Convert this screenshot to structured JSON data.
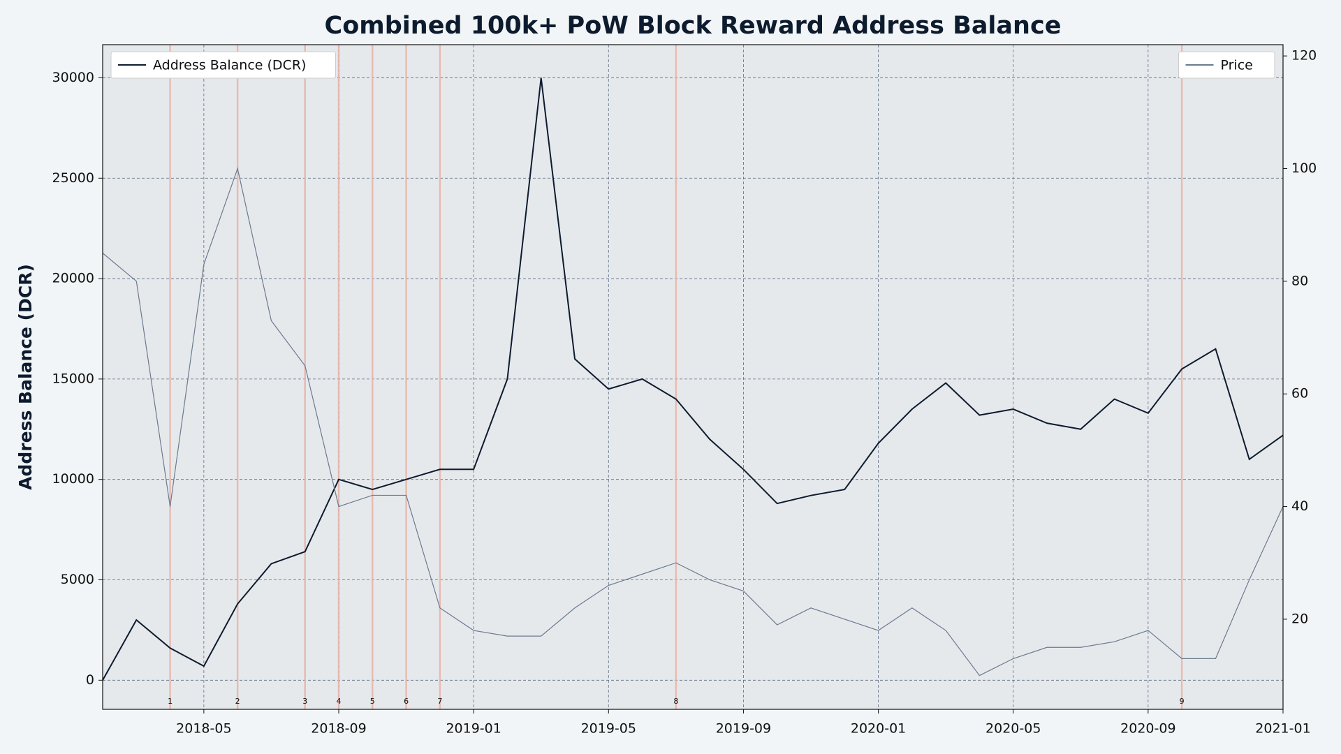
{
  "chart_data": {
    "type": "line",
    "title": "Combined 100k+ PoW Block Reward Address Balance",
    "y_label": "Address Balance (DCR)",
    "x": [
      "2018-02",
      "2018-03",
      "2018-04",
      "2018-05",
      "2018-06",
      "2018-07",
      "2018-08",
      "2018-09",
      "2018-10",
      "2018-11",
      "2018-12",
      "2019-01",
      "2019-02",
      "2019-03",
      "2019-04",
      "2019-05",
      "2019-06",
      "2019-07",
      "2019-08",
      "2019-09",
      "2019-10",
      "2019-11",
      "2019-12",
      "2020-01",
      "2020-02",
      "2020-03",
      "2020-04",
      "2020-05",
      "2020-06",
      "2020-07",
      "2020-08",
      "2020-09",
      "2020-10",
      "2020-11",
      "2020-12",
      "2021-01"
    ],
    "series": [
      {
        "name": "Address Balance (DCR)",
        "color": "#0d1b2e",
        "axis": "y",
        "legend": "upper left",
        "values": [
          0,
          3000,
          1600,
          700,
          3800,
          5800,
          6400,
          10000,
          9500,
          10000,
          10500,
          10500,
          15000,
          30000,
          16000,
          14500,
          15000,
          14000,
          12000,
          10500,
          8800,
          9200,
          9500,
          11800,
          13500,
          14800,
          13200,
          13500,
          12800,
          12500,
          14000,
          13300,
          15500,
          16500,
          11000,
          12200
        ]
      },
      {
        "name": "Price",
        "color": "#6b7a90",
        "axis": "y2",
        "legend": "upper right",
        "values": [
          85,
          80,
          40,
          83,
          100,
          73,
          65,
          40,
          42,
          42,
          22,
          18,
          17,
          17,
          22,
          26,
          28,
          30,
          27,
          25,
          19,
          22,
          20,
          18,
          22,
          18,
          10,
          13,
          15,
          15,
          16,
          18,
          13,
          13,
          27,
          40
        ]
      }
    ],
    "events": [
      {
        "x": "2018-04",
        "label": "1"
      },
      {
        "x": "2018-06",
        "label": "2"
      },
      {
        "x": "2018-08",
        "label": "3"
      },
      {
        "x": "2018-09",
        "label": "4"
      },
      {
        "x": "2018-10",
        "label": "5"
      },
      {
        "x": "2018-11",
        "label": "6"
      },
      {
        "x": "2018-12",
        "label": "7"
      },
      {
        "x": "2019-07",
        "label": "8"
      },
      {
        "x": "2020-10",
        "label": "9"
      }
    ],
    "event_color": "#e8b4a8",
    "xlim": [
      "2018-02",
      "2021-01"
    ],
    "xticks": [
      "2018-05",
      "2018-09",
      "2019-01",
      "2019-05",
      "2019-09",
      "2020-01",
      "2020-05",
      "2020-09",
      "2021-01"
    ],
    "ylim": [
      -1450,
      31650
    ],
    "yticks": [
      0,
      5000,
      10000,
      15000,
      20000,
      25000,
      30000
    ],
    "y2lim": [
      4,
      122
    ],
    "y2ticks": [
      20,
      40,
      60,
      80,
      100,
      120
    ],
    "grid": true
  }
}
